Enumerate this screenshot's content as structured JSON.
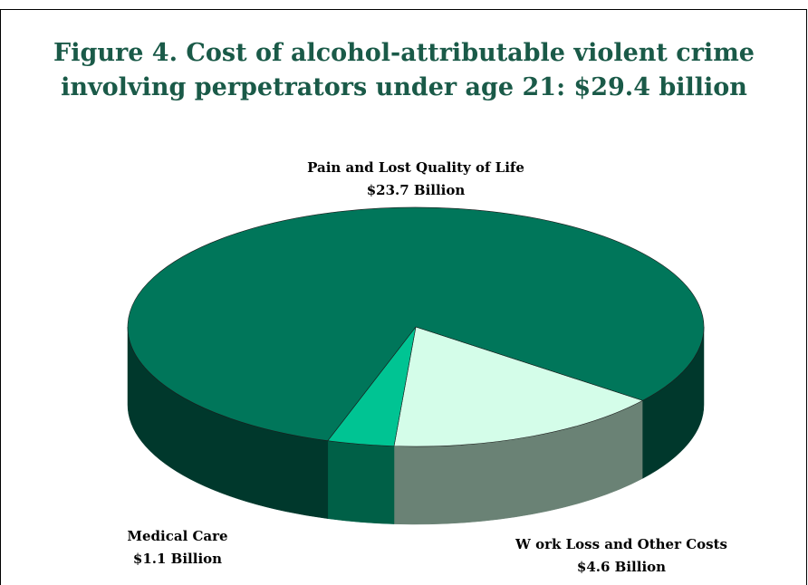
{
  "chart_data": {
    "type": "pie",
    "title": [
      "Figure 4. Cost of alcohol-attributable violent crime",
      "involving perpetrators under age 21: $29.4 billion"
    ],
    "unit": "Billion",
    "slices": [
      {
        "label": "Pain and Lost Quality of Life",
        "value": 23.7,
        "value_label": "$23.7 Billion",
        "color": "#00765a",
        "side_color": "#00382c"
      },
      {
        "label": "W ork Loss and Other Costs",
        "value": 4.6,
        "value_label": "$4.6 Billion",
        "color": "#d4fde9",
        "side_color": "#6a8275"
      },
      {
        "label": "Medical Care",
        "value": 1.1,
        "value_label": "$1.1 Billion",
        "color": "#00c493",
        "side_color": "#006047"
      }
    ],
    "legend": "none",
    "style": "3d"
  }
}
